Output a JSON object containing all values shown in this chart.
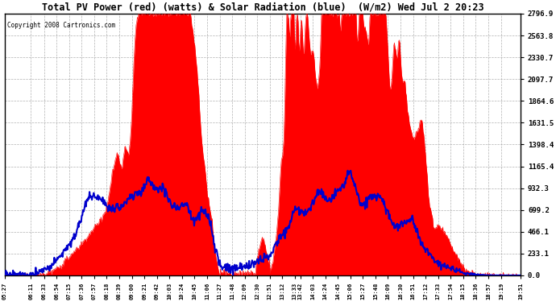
{
  "title": "Total PV Power (red) (watts) & Solar Radiation (blue)  (W/m2) Wed Jul 2 20:23",
  "copyright": "Copyright 2008 Cartronics.com",
  "ymax": 2796.9,
  "yticks": [
    0.0,
    233.1,
    466.1,
    699.2,
    932.3,
    1165.4,
    1398.4,
    1631.5,
    1864.6,
    2097.7,
    2330.7,
    2563.8,
    2796.9
  ],
  "bg_color": "#ffffff",
  "plot_bg": "#ffffff",
  "grid_color": "#aaaaaa",
  "red_color": "#ff0000",
  "blue_color": "#0000cc",
  "tick_labels": [
    "05:27",
    "06:11",
    "06:33",
    "06:54",
    "07:15",
    "07:36",
    "07:57",
    "08:18",
    "08:39",
    "09:00",
    "09:21",
    "09:42",
    "10:03",
    "10:24",
    "10:45",
    "11:06",
    "11:27",
    "11:48",
    "12:09",
    "12:30",
    "12:51",
    "13:12",
    "13:33",
    "13:42",
    "14:03",
    "14:24",
    "14:45",
    "15:06",
    "15:27",
    "15:48",
    "16:09",
    "16:30",
    "16:51",
    "17:12",
    "17:33",
    "17:54",
    "18:15",
    "18:36",
    "18:57",
    "19:19",
    "19:51"
  ],
  "total_minutes": 864
}
